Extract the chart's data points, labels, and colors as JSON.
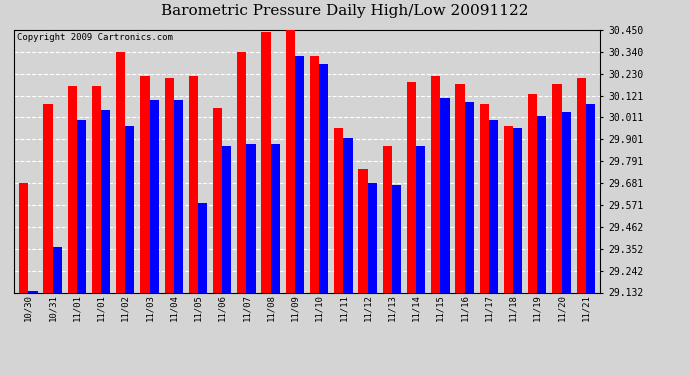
{
  "title": "Barometric Pressure Daily High/Low 20091122",
  "copyright": "Copyright 2009 Cartronics.com",
  "dates": [
    "10/30",
    "10/31",
    "11/01",
    "11/01",
    "11/02",
    "11/03",
    "11/04",
    "11/05",
    "11/06",
    "11/07",
    "11/08",
    "11/09",
    "11/10",
    "11/11",
    "11/12",
    "11/13",
    "11/14",
    "11/15",
    "11/16",
    "11/17",
    "11/18",
    "11/19",
    "11/20",
    "11/21"
  ],
  "highs": [
    29.68,
    30.08,
    30.17,
    30.17,
    30.34,
    30.22,
    30.21,
    30.22,
    30.06,
    30.34,
    30.44,
    30.45,
    30.32,
    29.96,
    29.75,
    29.87,
    30.19,
    30.22,
    30.18,
    30.08,
    29.97,
    30.13,
    30.18,
    30.21
  ],
  "lows": [
    29.14,
    29.36,
    30.0,
    30.05,
    29.97,
    30.1,
    30.1,
    29.58,
    29.87,
    29.88,
    29.88,
    30.32,
    30.28,
    29.91,
    29.68,
    29.67,
    29.87,
    30.11,
    30.09,
    30.0,
    29.96,
    30.02,
    30.04,
    30.08
  ],
  "ylim_min": 29.132,
  "ylim_max": 30.45,
  "yticks": [
    29.132,
    29.242,
    29.352,
    29.462,
    29.571,
    29.681,
    29.791,
    29.901,
    30.011,
    30.121,
    30.23,
    30.34,
    30.45
  ],
  "bar_width": 0.38,
  "high_color": "#ff0000",
  "low_color": "#0000ff",
  "bg_color": "#d4d4d4",
  "grid_color": "#ffffff",
  "title_fontsize": 11,
  "copyright_fontsize": 6.5
}
